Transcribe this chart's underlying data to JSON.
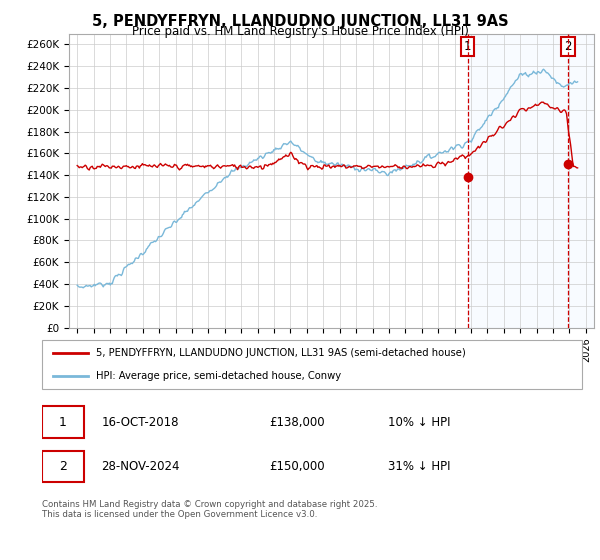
{
  "title": "5, PENDYFFRYN, LLANDUDNO JUNCTION, LL31 9AS",
  "subtitle": "Price paid vs. HM Land Registry's House Price Index (HPI)",
  "ylim": [
    0,
    270000
  ],
  "yticks": [
    0,
    20000,
    40000,
    60000,
    80000,
    100000,
    120000,
    140000,
    160000,
    180000,
    200000,
    220000,
    240000,
    260000
  ],
  "ytick_labels": [
    "£0",
    "£20K",
    "£40K",
    "£60K",
    "£80K",
    "£100K",
    "£120K",
    "£140K",
    "£160K",
    "£180K",
    "£200K",
    "£220K",
    "£240K",
    "£260K"
  ],
  "hpi_color": "#7ab8d9",
  "price_color": "#cc0000",
  "vline_color": "#cc0000",
  "marker1_year": 2018.79,
  "marker2_year": 2024.91,
  "marker1_price": 138000,
  "marker2_price": 150000,
  "annotation1": "1",
  "annotation2": "2",
  "legend_price_label": "5, PENDYFFRYN, LLANDUDNO JUNCTION, LL31 9AS (semi-detached house)",
  "legend_hpi_label": "HPI: Average price, semi-detached house, Conwy",
  "table_row1": [
    "1",
    "16-OCT-2018",
    "£138,000",
    "10% ↓ HPI"
  ],
  "table_row2": [
    "2",
    "28-NOV-2024",
    "£150,000",
    "31% ↓ HPI"
  ],
  "footer": "Contains HM Land Registry data © Crown copyright and database right 2025.\nThis data is licensed under the Open Government Licence v3.0.",
  "grid_color": "#cccccc",
  "shaded_color": "#ddeeff",
  "xlim_start": 1994.5,
  "xlim_end": 2026.5
}
